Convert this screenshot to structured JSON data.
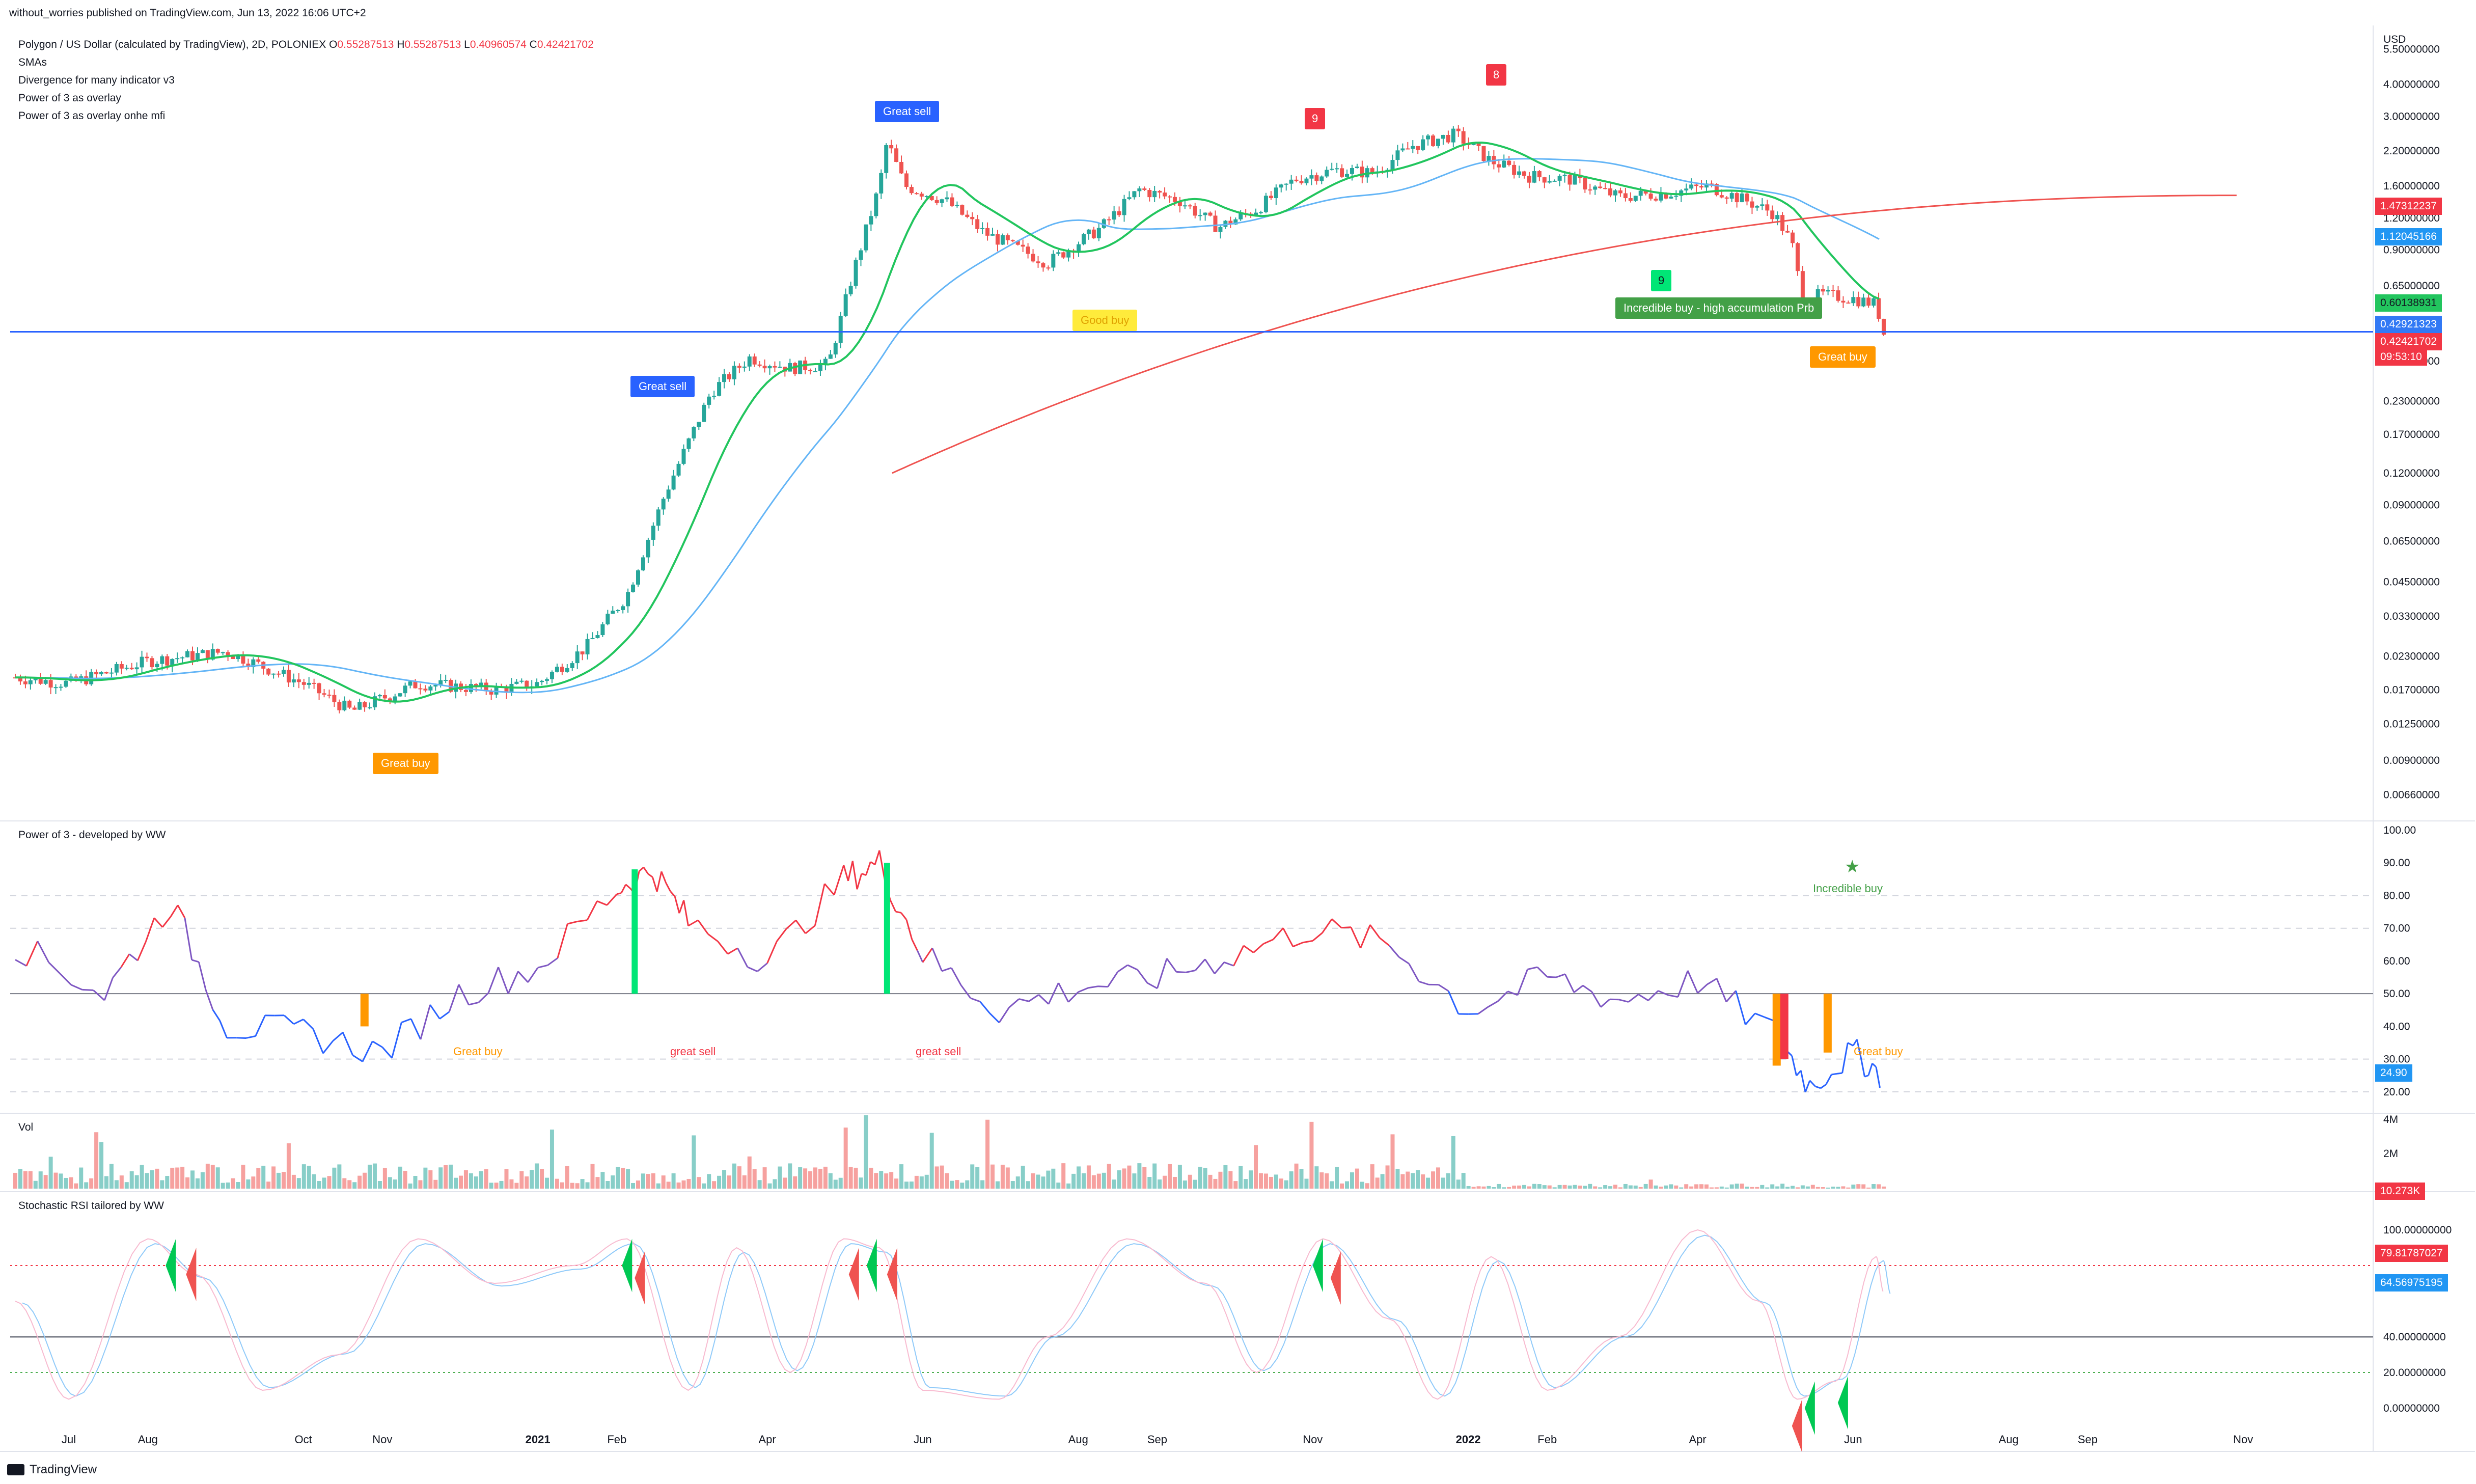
{
  "header": {
    "publisher": "without_worries published on TradingView.com, Jun 13, 2022 16:06 UTC+2"
  },
  "legend": {
    "symbol": "Polygon / US Dollar (calculated by TradingView), 2D, POLONIEX",
    "o_label": "O",
    "o": "0.55287513",
    "h_label": "H",
    "h": "0.55287513",
    "l_label": "L",
    "l": "0.40960574",
    "c_label": "C",
    "c": "0.42421702",
    "indicators": [
      "SMAs",
      "Divergence for many indicator v3",
      "Power of 3 as overlay",
      "Power of 3 as overlay onhe mfi"
    ]
  },
  "price_axis": {
    "currency": "USD",
    "ticks": [
      "5.50000000",
      "4.00000000",
      "3.00000000",
      "2.20000000",
      "1.60000000",
      "1.20000000",
      "0.90000000",
      "0.65000000",
      "0.47000000",
      "0.33000000",
      "0.23000000",
      "0.17000000",
      "0.12000000",
      "0.09000000",
      "0.06500000",
      "0.04500000",
      "0.03300000",
      "0.02300000",
      "0.01700000",
      "0.01250000",
      "0.00900000",
      "0.00660000"
    ],
    "tags": [
      {
        "label": "1.47312237",
        "color": "#f23645"
      },
      {
        "label": "1.12045166",
        "color": "#2196f3"
      },
      {
        "label": "0.60138931",
        "color": "#22c55e"
      },
      {
        "label": "0.42921323",
        "color": "#3179f5"
      },
      {
        "label": "0.42421702",
        "color": "#f23645"
      },
      {
        "label": "09:53:10",
        "color": "#f23645"
      }
    ]
  },
  "time_axis": [
    "Jul",
    "Aug",
    "Oct",
    "Nov",
    "2021",
    "Feb",
    "Apr",
    "Jun",
    "Aug",
    "Sep",
    "Nov",
    "2022",
    "Feb",
    "Apr",
    "Jun",
    "Aug",
    "Sep",
    "Nov"
  ],
  "annotations": [
    {
      "text": "Great buy",
      "color": "#ff9800"
    },
    {
      "text": "Great sell",
      "color": "#2962ff"
    },
    {
      "text": "Great sell",
      "color": "#2962ff"
    },
    {
      "text": "Good buy",
      "color": "#ffeb3b",
      "text_color": "#e0a100"
    },
    {
      "text": "9",
      "color": "#f23645"
    },
    {
      "text": "8",
      "color": "#f23645"
    },
    {
      "text": "9",
      "color": "#00e676"
    },
    {
      "text": "Incredible buy - high accumulation Prb",
      "color": "#43a047"
    },
    {
      "text": "Great buy",
      "color": "#ff9800"
    }
  ],
  "panes": {
    "power3": {
      "title": "Power of 3 - developed by WW",
      "ticks": [
        "100.00",
        "90.00",
        "80.00",
        "70.00",
        "60.00",
        "50.00",
        "40.00",
        "30.00",
        "20.00"
      ],
      "value": "24.90",
      "labels": [
        {
          "text": "Great buy",
          "color": "#ff9800"
        },
        {
          "text": "great sell",
          "color": "#f23645"
        },
        {
          "text": "great sell",
          "color": "#f23645"
        },
        {
          "text": "Incredible buy",
          "color": "#43a047"
        },
        {
          "text": "Great buy",
          "color": "#ff9800"
        }
      ],
      "star": "★"
    },
    "volume": {
      "title": "Vol",
      "ticks": [
        "4M",
        "2M"
      ],
      "value": "10.273K"
    },
    "stoch": {
      "title": "Stochastic RSI tailored by WW",
      "ticks": [
        "100.00000000",
        "40.00000000",
        "20.00000000",
        "0.00000000"
      ],
      "tags": [
        {
          "label": "79.81787027",
          "color": "#f23645"
        },
        {
          "label": "64.56975195",
          "color": "#2196f3"
        }
      ]
    }
  },
  "footer": {
    "brand": "TradingView"
  },
  "chart_data": [
    {
      "type": "line",
      "name": "MATIC/USD price (approx. closes, 2D)",
      "x": [
        "2020-06-10",
        "2020-07-01",
        "2020-08-01",
        "2020-09-01",
        "2020-10-01",
        "2020-10-20",
        "2020-11-15",
        "2020-12-15",
        "2021-01-01",
        "2021-01-20",
        "2021-02-05",
        "2021-02-20",
        "2021-03-10",
        "2021-03-25",
        "2021-04-10",
        "2021-04-25",
        "2021-05-05",
        "2021-05-15",
        "2021-05-18",
        "2021-05-25",
        "2021-06-10",
        "2021-06-25",
        "2021-07-20",
        "2021-08-10",
        "2021-08-25",
        "2021-09-10",
        "2021-09-25",
        "2021-10-10",
        "2021-10-25",
        "2021-11-10",
        "2021-11-25",
        "2021-12-10",
        "2021-12-27",
        "2022-01-10",
        "2022-01-25",
        "2022-02-10",
        "2022-03-01",
        "2022-03-20",
        "2022-04-05",
        "2022-04-20",
        "2022-05-01",
        "2022-05-08",
        "2022-05-12",
        "2022-05-20",
        "2022-06-01",
        "2022-06-10",
        "2022-06-13"
      ],
      "y": [
        0.019,
        0.018,
        0.022,
        0.024,
        0.018,
        0.014,
        0.018,
        0.017,
        0.018,
        0.025,
        0.04,
        0.1,
        0.25,
        0.34,
        0.31,
        0.32,
        0.75,
        1.6,
        2.4,
        1.6,
        1.4,
        1.05,
        0.8,
        1.1,
        1.55,
        1.4,
        1.1,
        1.3,
        1.7,
        1.85,
        1.8,
        2.3,
        2.55,
        2.0,
        1.75,
        1.7,
        1.45,
        1.5,
        1.6,
        1.4,
        1.25,
        0.95,
        0.58,
        0.6,
        0.58,
        0.55,
        0.424
      ],
      "ylim": [
        0.0055,
        6.5
      ],
      "yscale": "log"
    },
    {
      "type": "line",
      "name": "Power of 3",
      "ylim": [
        15,
        100
      ],
      "x": [
        "2020-06-10",
        "2020-07-15",
        "2020-08-10",
        "2020-09-01",
        "2020-10-01",
        "2020-11-01",
        "2020-12-01",
        "2021-01-01",
        "2021-02-01",
        "2021-02-15",
        "2021-03-01",
        "2021-04-01",
        "2021-05-01",
        "2021-05-15",
        "2021-06-01",
        "2021-07-01",
        "2021-08-01",
        "2021-09-01",
        "2021-10-01",
        "2021-11-01",
        "2021-12-01",
        "2022-01-01",
        "2022-02-01",
        "2022-03-01",
        "2022-04-01",
        "2022-05-01",
        "2022-05-15",
        "2022-06-01",
        "2022-06-13"
      ],
      "y": [
        65,
        50,
        78,
        40,
        38,
        32,
        50,
        58,
        82,
        88,
        72,
        60,
        85,
        90,
        62,
        45,
        52,
        55,
        62,
        70,
        65,
        45,
        55,
        48,
        54,
        38,
        22,
        32,
        25
      ]
    },
    {
      "type": "line",
      "name": "Stochastic RSI",
      "ylim": [
        -10,
        110
      ],
      "x": [
        "2020-06-10",
        "2020-07-01",
        "2020-08-01",
        "2020-08-20",
        "2020-09-15",
        "2020-10-15",
        "2020-11-15",
        "2020-12-15",
        "2021-01-15",
        "2021-02-05",
        "2021-03-01",
        "2021-03-20",
        "2021-04-10",
        "2021-05-01",
        "2021-05-15",
        "2021-06-01",
        "2021-07-01",
        "2021-07-20",
        "2021-08-20",
        "2021-09-20",
        "2021-10-10",
        "2021-11-05",
        "2021-12-01",
        "2021-12-20",
        "2022-01-10",
        "2022-02-01",
        "2022-03-01",
        "2022-04-01",
        "2022-04-25",
        "2022-05-10",
        "2022-05-25",
        "2022-06-10",
        "2022-06-13"
      ],
      "y": [
        60,
        5,
        95,
        75,
        10,
        30,
        95,
        70,
        80,
        95,
        10,
        90,
        20,
        95,
        90,
        10,
        5,
        40,
        95,
        70,
        20,
        95,
        50,
        5,
        85,
        10,
        40,
        100,
        60,
        5,
        15,
        85,
        65
      ]
    }
  ]
}
